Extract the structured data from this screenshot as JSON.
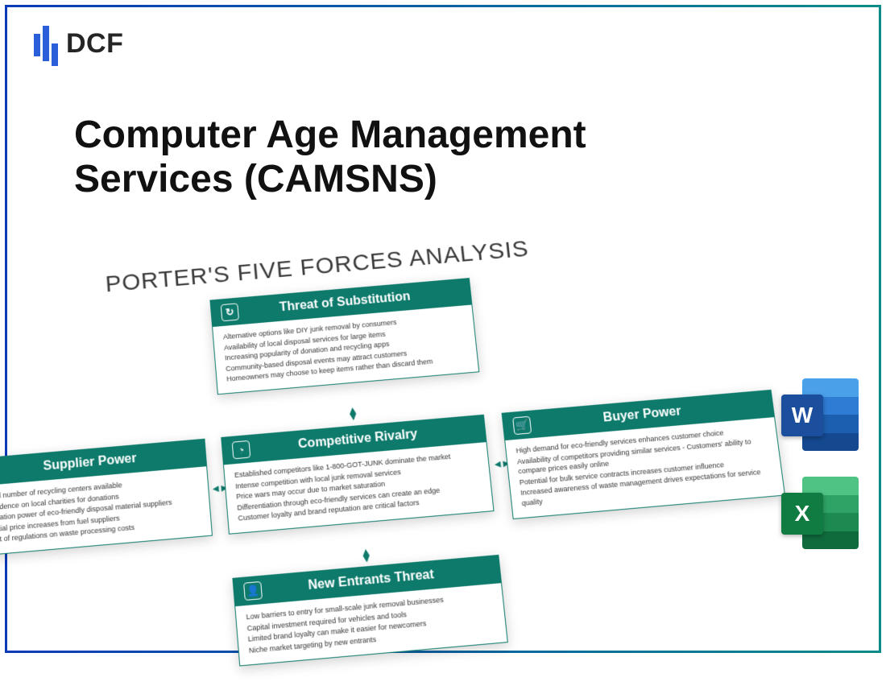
{
  "logo_text": "DCF",
  "title": "Computer Age Management Services (CAMSNS)",
  "diagram_title": "PORTER'S FIVE FORCES ANALYSIS",
  "colors": {
    "card_header_bg": "#0d7a6b",
    "border_gradient_start": "#0a3ab8",
    "border_gradient_end": "#0d8a8a",
    "logo_accent": "#2b5fd9"
  },
  "cards": {
    "substitution": {
      "title": "Threat of Substitution",
      "icon": "↻",
      "lines": [
        "Alternative options like DIY junk removal by consumers",
        "Availability of local disposal services for large items",
        "Increasing popularity of donation and recycling apps",
        "Community-based disposal events may attract customers",
        "Homeowners may choose to keep items rather than discard them"
      ]
    },
    "supplier": {
      "title": "Supplier Power",
      "icon": "⇢",
      "lines": [
        "Limited number of recycling centers available",
        "Dependence on local charities for donations",
        "Negotiation power of eco-friendly disposal material suppliers",
        "Potential price increases from fuel suppliers",
        "Impact of regulations on waste processing costs"
      ]
    },
    "rivalry": {
      "title": "Competitive Rivalry",
      "icon": "◔",
      "lines": [
        "Established competitors like 1-800-GOT-JUNK dominate the market",
        "Intense competition with local junk removal services",
        "Price wars may occur due to market saturation",
        "Differentiation through eco-friendly services can create an edge",
        "Customer loyalty and brand reputation are critical factors"
      ]
    },
    "buyer": {
      "title": "Buyer Power",
      "icon": "🛒",
      "lines": [
        "High demand for eco-friendly services enhances customer choice",
        "Availability of competitors providing similar services  - Customers' ability to compare prices easily online",
        "Potential for bulk service contracts increases customer influence",
        "Increased awareness of waste management drives expectations for service quality"
      ]
    },
    "entrants": {
      "title": "New Entrants Threat",
      "icon": "👤",
      "lines": [
        "Low barriers to entry for small-scale junk removal businesses",
        "Capital investment required for vehicles and tools",
        "Limited brand loyalty can make it easier for newcomers",
        "Niche market targeting by new entrants"
      ]
    }
  },
  "icons": {
    "word_letter": "W",
    "excel_letter": "X"
  }
}
